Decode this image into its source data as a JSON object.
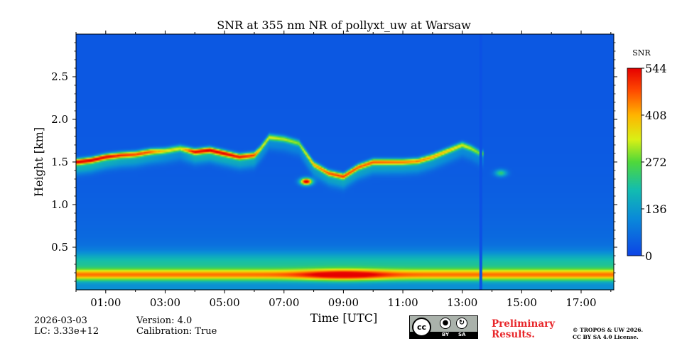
{
  "chart_data": {
    "type": "heatmap",
    "title": "SNR at 355 nm NR of pollyxt_uw at Warsaw",
    "xlabel": "Time [UTC]",
    "ylabel": "Height [km]",
    "xlim": [
      0,
      18.1
    ],
    "ylim": [
      0,
      3.0
    ],
    "x_ticks": [
      1,
      3,
      5,
      7,
      9,
      11,
      13,
      15,
      17
    ],
    "x_tick_labels": [
      "01:00",
      "03:00",
      "05:00",
      "07:00",
      "09:00",
      "11:00",
      "13:00",
      "15:00",
      "17:00"
    ],
    "y_ticks": [
      0.5,
      1.0,
      1.5,
      2.0,
      2.5
    ],
    "y_tick_labels": [
      "0.5",
      "1.0",
      "1.5",
      "2.0",
      "2.5"
    ],
    "colorbar": {
      "label": "SNR",
      "min": 0,
      "max": 544,
      "ticks": [
        0,
        136,
        272,
        408,
        544
      ],
      "tick_labels": [
        "0",
        "136",
        "272",
        "408",
        "544"
      ]
    },
    "surface_layer": {
      "height_range_km": [
        0.1,
        0.25
      ],
      "peak_snr": 544,
      "peak_time_utc": 9.0
    },
    "cloud_layer": {
      "times_utc": [
        0,
        0.5,
        1,
        1.5,
        2,
        2.5,
        3,
        3.5,
        4,
        4.5,
        5,
        5.5,
        6,
        6.2,
        6.5,
        7,
        7.5,
        8,
        8.5,
        9,
        9.5,
        10,
        10.5,
        11,
        11.5,
        12,
        12.5,
        13,
        13.3,
        13.6,
        13.7
      ],
      "heights_km": [
        1.5,
        1.52,
        1.56,
        1.58,
        1.59,
        1.62,
        1.63,
        1.66,
        1.62,
        1.64,
        1.6,
        1.56,
        1.58,
        1.65,
        1.79,
        1.77,
        1.72,
        1.47,
        1.37,
        1.33,
        1.44,
        1.5,
        1.5,
        1.5,
        1.51,
        1.56,
        1.63,
        1.7,
        1.66,
        1.6,
        1.6
      ],
      "peak_snr": [
        520,
        520,
        500,
        460,
        440,
        420,
        320,
        300,
        500,
        520,
        510,
        470,
        440,
        320,
        300,
        280,
        260,
        360,
        420,
        440,
        420,
        420,
        410,
        400,
        390,
        370,
        340,
        300,
        280,
        240,
        230
      ]
    },
    "features": [
      {
        "name": "low cloud",
        "time_utc": 7.75,
        "height_km": 1.27,
        "peak_snr": 544
      },
      {
        "name": "weak patch",
        "time_utc": 14.3,
        "height_km": 1.37,
        "peak_snr": 200
      }
    ],
    "data_gap_time_utc": 13.62
  },
  "footer": {
    "date": "2026-03-03",
    "lc": "LC: 3.33e+12",
    "version": "Version: 4.0",
    "calibration": "Calibration: True",
    "preliminary": "Preliminary Results.",
    "copyright_line1": "© TROPOS & UW 2026.",
    "copyright_line2": "CC BY SA 4.0 License.",
    "license_cc": "cc",
    "license_by": "BY",
    "license_sa": "SA"
  }
}
